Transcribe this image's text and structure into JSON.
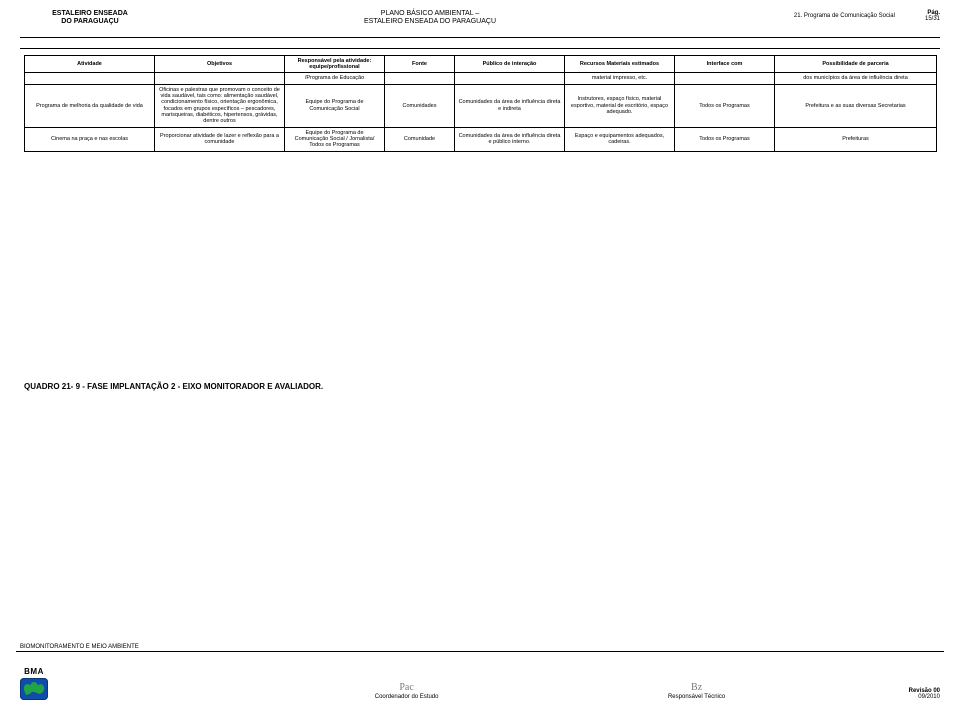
{
  "header": {
    "left_line1": "ESTALEIRO ENSEADA",
    "left_line2": "DO PARAGUAÇU",
    "center_line1": "PLANO BÁSICO AMBIENTAL –",
    "center_line2": "ESTALEIRO ENSEADA DO PARAGUAÇU",
    "program": "21. Programa de Comunicação Social",
    "pg_label": "Pág.",
    "pg_value": "15/31"
  },
  "table": {
    "headers": [
      "Atividade",
      "Objetivos",
      "Responsável pela atividade: equipe/profissional",
      "Fonte",
      "Público de interação",
      "Recursos Materiais estimados",
      "Interface com",
      "Possibilidade de parceria"
    ],
    "rows": [
      {
        "c1": "",
        "c2": "",
        "c3": "/Programa de Educação",
        "c4": "",
        "c5": "",
        "c6": "material impresso, etc.",
        "c7": "",
        "c8": "dos municípios da área de influência direta"
      },
      {
        "c1": "Programa de melhoria da qualidade de vida",
        "c2": "Oficinas e palestras que promovam o conceito de vida saudável, tais como: alimentação saudável, condicionamento físico, orientação ergonômica, focados em grupos específicos – pescadores, marisqueiras, diabéticos, hipertensos, grávidas, dentre outros",
        "c3": "Equipe do Programa de Comunicação Social",
        "c4": "Comunidades",
        "c5": "Comunidades da área de influência direta e indireta",
        "c6": "Instrutores, espaço físico, material esportivo, material de escritório, espaço adequado.",
        "c7": "Todos os Programas",
        "c8": "Prefeitura e as suas diversas Secretarias"
      },
      {
        "c1": "Cinema na praça e nas escolas",
        "c2": "Proporcionar atividade de lazer e reflexão para a comunidade",
        "c3": "Equipe do Programa de Comunicação Social / Jornalista/ Todos os Programas",
        "c4": "Comunidade",
        "c5": "Comunidades da área de influência direta e público interno.",
        "c6": "Espaço e equipamentos adequados, cadeiras.",
        "c7": "Todos os Programas",
        "c8": "Prefeituras"
      }
    ]
  },
  "caption": "QUADRO 21- 9 - FASE IMPLANTAÇÃO 2 - EIXO MONITORADOR E AVALIADOR.",
  "footer": {
    "strip": "BIOMONITORAMENTO E MEIO AMBIENTE",
    "logo_text": "BMA",
    "sign1_sig": "Pac",
    "sign1_label": "Coordenador do Estudo",
    "sign2_sig": "Bz",
    "sign2_label": "Responsável Técnico",
    "rev_bold": "Revisão 00",
    "rev_date": "09/2010"
  }
}
